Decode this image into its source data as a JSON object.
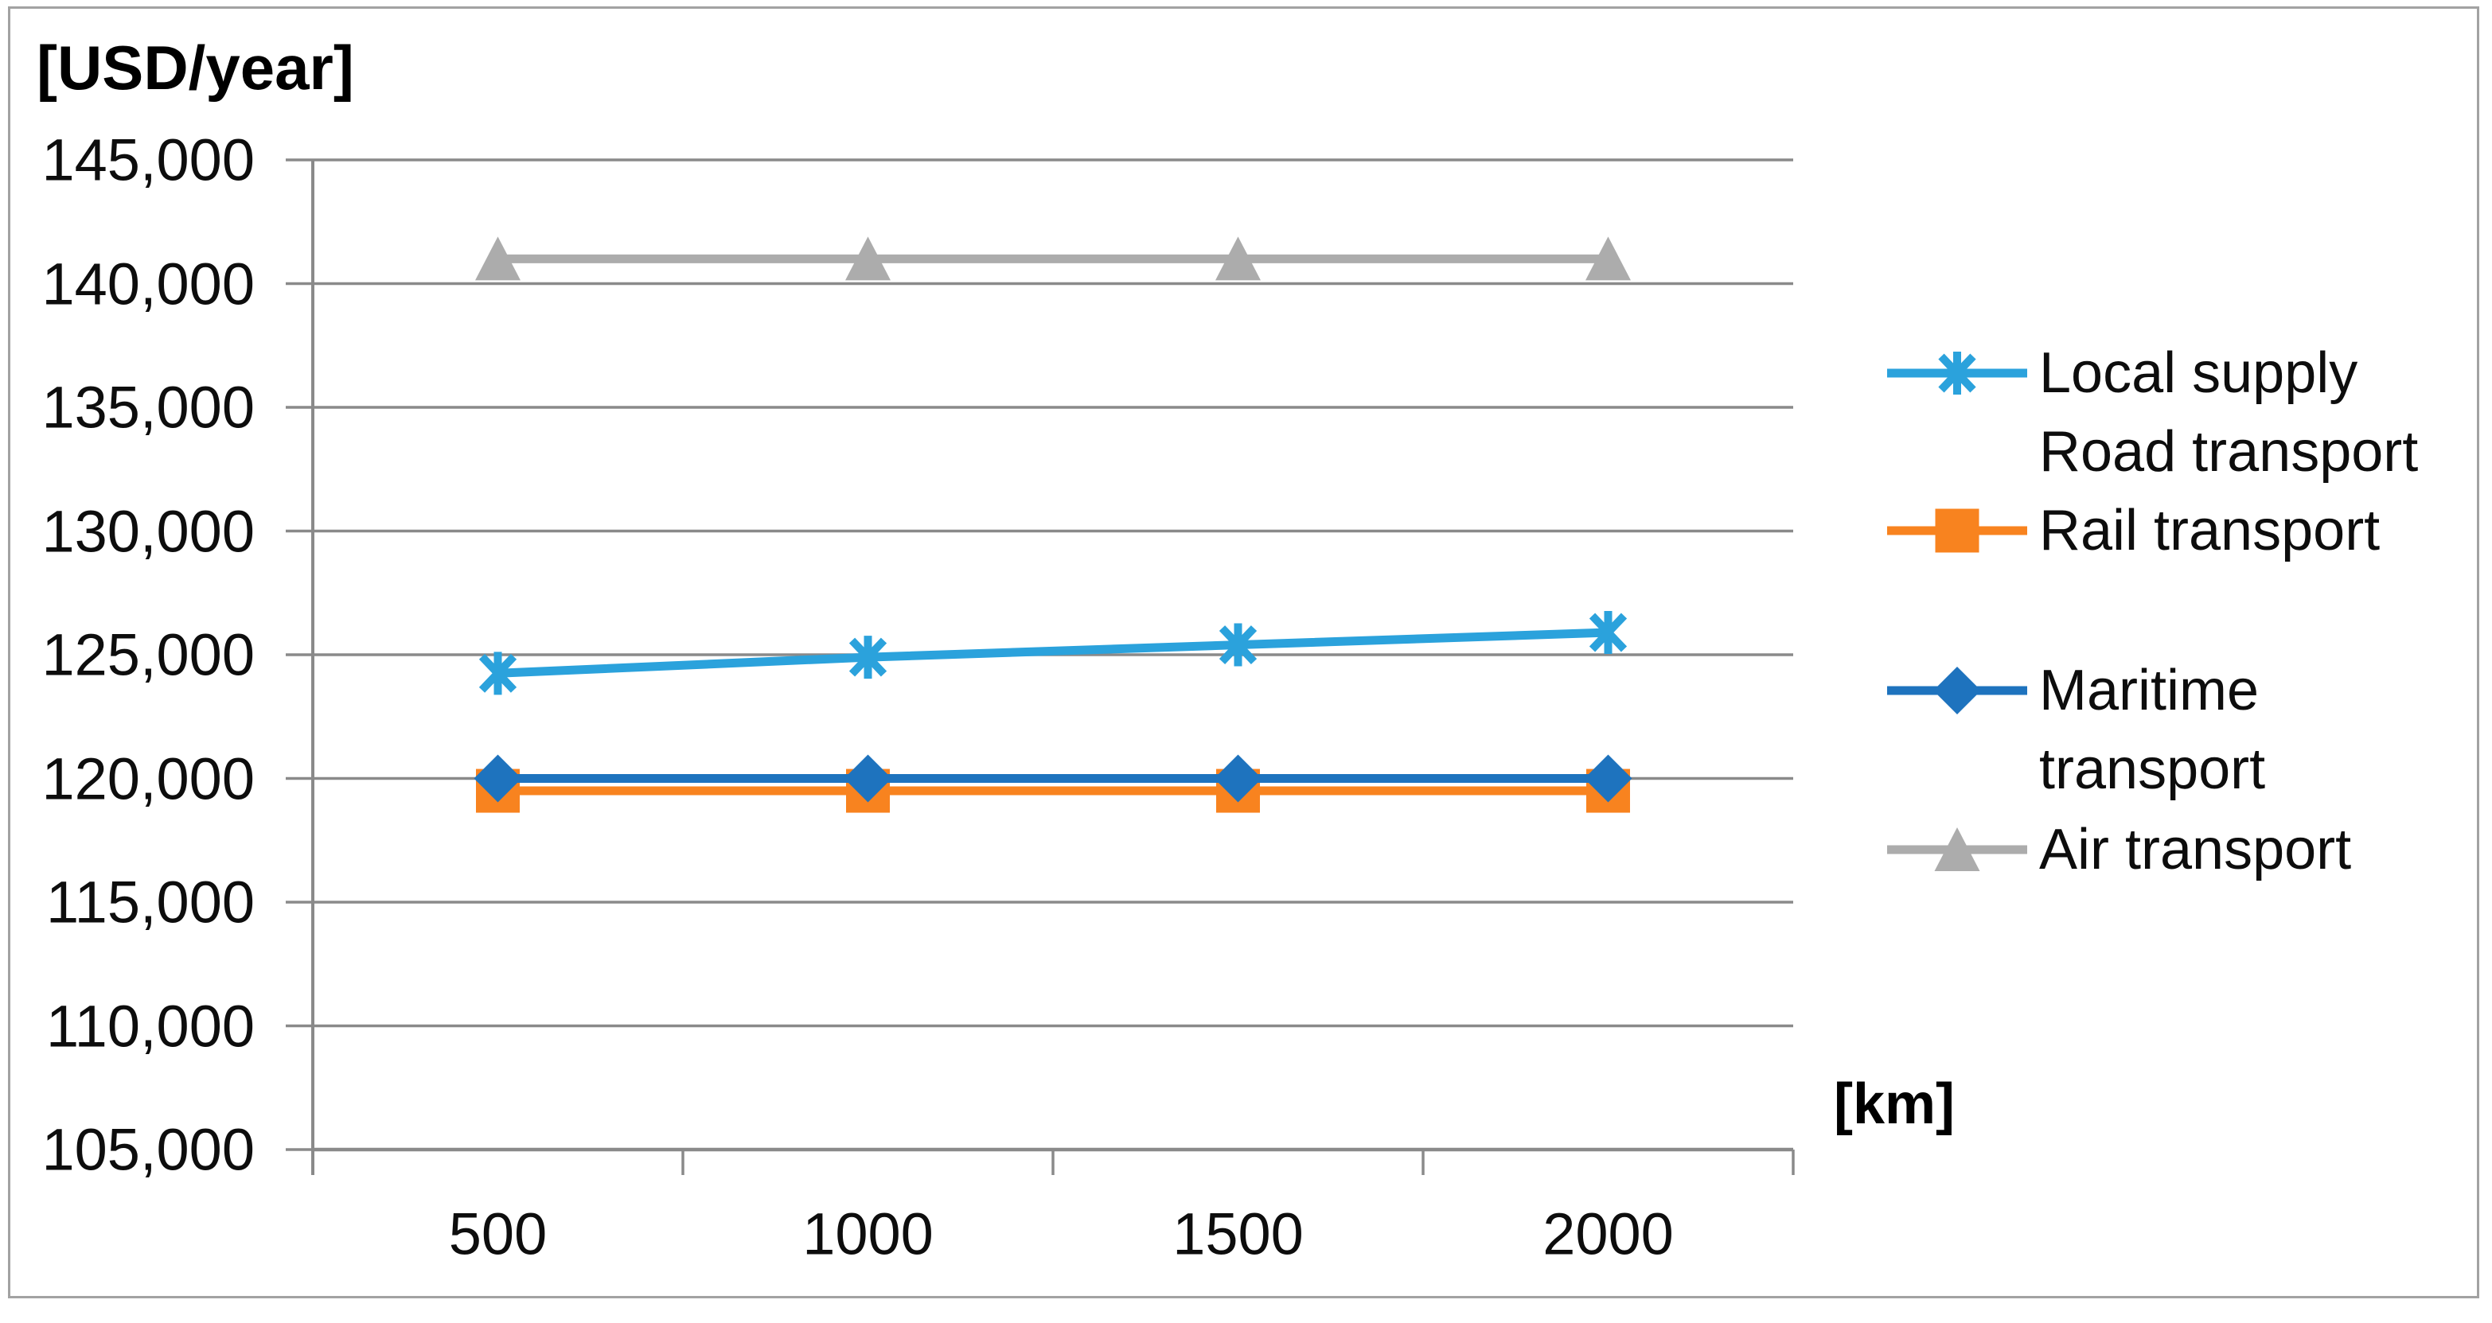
{
  "chart_data": {
    "type": "line",
    "title": "",
    "y_axis_unit_label": "[USD/year]",
    "x_axis_unit_label": "[km]",
    "xlabel": "[km]",
    "ylabel": "[USD/year]",
    "categories": [
      "500",
      "1000",
      "1500",
      "2000"
    ],
    "x_ticks": [
      {
        "value": 500,
        "label": "500"
      },
      {
        "value": 1000,
        "label": "1000"
      },
      {
        "value": 1500,
        "label": "1500"
      },
      {
        "value": 2000,
        "label": "2000"
      }
    ],
    "y_ticks": [
      {
        "value": 105000,
        "label": "105,000"
      },
      {
        "value": 110000,
        "label": "110,000"
      },
      {
        "value": 115000,
        "label": "115,000"
      },
      {
        "value": 120000,
        "label": "120,000"
      },
      {
        "value": 125000,
        "label": "125,000"
      },
      {
        "value": 130000,
        "label": "130,000"
      },
      {
        "value": 135000,
        "label": "135,000"
      },
      {
        "value": 140000,
        "label": "140,000"
      },
      {
        "value": 145000,
        "label": "145,000"
      }
    ],
    "ylim": [
      105000,
      145000
    ],
    "grid": "horizontal",
    "legend_position": "right",
    "series": [
      {
        "name": "Local supply Road transport",
        "legend_lines": [
          "Local supply",
          "Road transport"
        ],
        "marker": "asterisk",
        "color": "#2ba2dc",
        "values": [
          124250,
          124900,
          125400,
          125900
        ]
      },
      {
        "name": "Rail transport",
        "legend_lines": [
          "Rail transport"
        ],
        "marker": "square",
        "color": "#f8831f",
        "values": [
          119500,
          119500,
          119500,
          119500
        ]
      },
      {
        "name": "Maritime transport",
        "legend_lines": [
          "Maritime",
          "transport"
        ],
        "marker": "diamond",
        "color": "#1e73be",
        "values": [
          120000,
          120000,
          120000,
          120000
        ]
      },
      {
        "name": "Air transport",
        "legend_lines": [
          "Air transport"
        ],
        "marker": "triangle-up",
        "color": "#acacac",
        "values": [
          141000,
          141000,
          141000,
          141000
        ]
      }
    ],
    "colors": {
      "gridline": "#8a8a8a",
      "axis_line": "#8a8a8a",
      "chart_border": "#a2a2a2",
      "text": "#0d0d0d"
    }
  }
}
